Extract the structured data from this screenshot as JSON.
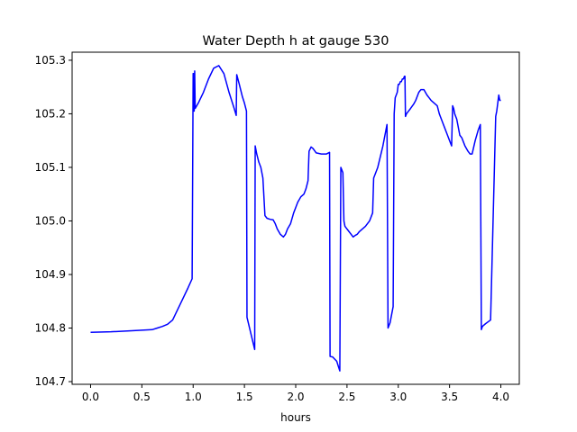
{
  "chart_data": {
    "type": "line",
    "title": "Water Depth h at gauge 530",
    "xlabel": "hours",
    "ylabel": "",
    "xlim": [
      -0.18,
      4.18
    ],
    "ylim": [
      104.695,
      105.315
    ],
    "xticks": [
      0.0,
      0.5,
      1.0,
      1.5,
      2.0,
      2.5,
      3.0,
      3.5,
      4.0
    ],
    "xtick_labels": [
      "0.0",
      "0.5",
      "1.0",
      "1.5",
      "2.0",
      "2.5",
      "3.0",
      "3.5",
      "4.0"
    ],
    "yticks": [
      104.7,
      104.8,
      104.9,
      105.0,
      105.1,
      105.2,
      105.3
    ],
    "ytick_labels": [
      "104.7",
      "104.8",
      "104.9",
      "105.0",
      "105.1",
      "105.2",
      "105.3"
    ],
    "grid": false,
    "series": [
      {
        "color": "#0000ff",
        "x": [
          0.0,
          0.2,
          0.4,
          0.6,
          0.65,
          0.7,
          0.75,
          0.8,
          0.85,
          0.9,
          0.95,
          0.99,
          1.0,
          1.005,
          1.01,
          1.015,
          1.02,
          1.05,
          1.1,
          1.15,
          1.2,
          1.25,
          1.3,
          1.35,
          1.4,
          1.42,
          1.425,
          1.45,
          1.48,
          1.5,
          1.52,
          1.525,
          1.6,
          1.605,
          1.62,
          1.64,
          1.66,
          1.68,
          1.7,
          1.72,
          1.75,
          1.78,
          1.8,
          1.82,
          1.85,
          1.88,
          1.9,
          1.92,
          1.95,
          1.98,
          2.0,
          2.02,
          2.05,
          2.08,
          2.1,
          2.12,
          2.13,
          2.15,
          2.17,
          2.2,
          2.25,
          2.3,
          2.33,
          2.335,
          2.36,
          2.4,
          2.43,
          2.44,
          2.45,
          2.46,
          2.47,
          2.48,
          2.5,
          2.52,
          2.54,
          2.56,
          2.58,
          2.6,
          2.62,
          2.65,
          2.68,
          2.7,
          2.72,
          2.75,
          2.76,
          2.8,
          2.85,
          2.88,
          2.89,
          2.9,
          2.92,
          2.95,
          2.96,
          2.97,
          2.98,
          2.99,
          3.0,
          3.01,
          3.02,
          3.03,
          3.04,
          3.05,
          3.06,
          3.065,
          3.07,
          3.08,
          3.1,
          3.12,
          3.15,
          3.17,
          3.2,
          3.22,
          3.25,
          3.28,
          3.3,
          3.32,
          3.35,
          3.38,
          3.4,
          3.43,
          3.45,
          3.48,
          3.5,
          3.52,
          3.53,
          3.54,
          3.55,
          3.57,
          3.6,
          3.62,
          3.63,
          3.65,
          3.68,
          3.7,
          3.72,
          3.75,
          3.78,
          3.8,
          3.81,
          3.815,
          3.82,
          3.85,
          3.9,
          3.95,
          3.955,
          3.96,
          3.97,
          3.98,
          3.99,
          4.0
        ],
        "y": [
          104.792,
          104.793,
          104.795,
          104.797,
          104.8,
          104.803,
          104.807,
          104.815,
          104.835,
          104.855,
          104.875,
          104.892,
          105.275,
          105.275,
          105.205,
          105.28,
          105.21,
          105.22,
          105.24,
          105.265,
          105.285,
          105.29,
          105.275,
          105.24,
          105.21,
          105.197,
          105.273,
          105.255,
          105.232,
          105.22,
          105.205,
          104.82,
          104.76,
          105.14,
          105.125,
          105.11,
          105.1,
          105.08,
          105.01,
          105.005,
          105.003,
          105.002,
          104.995,
          104.985,
          104.975,
          104.97,
          104.975,
          104.985,
          104.995,
          105.015,
          105.025,
          105.035,
          105.045,
          105.05,
          105.06,
          105.075,
          105.13,
          105.138,
          105.135,
          105.127,
          105.125,
          105.125,
          105.128,
          104.747,
          104.746,
          104.738,
          104.72,
          105.1,
          105.095,
          105.09,
          105.0,
          104.99,
          104.985,
          104.98,
          104.975,
          104.97,
          104.973,
          104.975,
          104.98,
          104.985,
          104.99,
          104.995,
          105.0,
          105.015,
          105.08,
          105.1,
          105.14,
          105.17,
          105.18,
          104.8,
          104.81,
          104.84,
          105.2,
          105.23,
          105.235,
          105.24,
          105.255,
          105.255,
          105.26,
          105.26,
          105.265,
          105.265,
          105.27,
          105.27,
          105.195,
          105.2,
          105.205,
          105.21,
          105.218,
          105.225,
          105.24,
          105.245,
          105.245,
          105.235,
          105.23,
          105.225,
          105.22,
          105.215,
          105.2,
          105.185,
          105.175,
          105.16,
          105.15,
          105.14,
          105.215,
          105.21,
          105.2,
          105.19,
          105.16,
          105.155,
          105.15,
          105.14,
          105.13,
          105.125,
          105.125,
          105.15,
          105.17,
          105.18,
          104.797,
          104.8,
          104.803,
          104.808,
          104.815,
          105.195,
          105.2,
          105.205,
          105.22,
          105.235,
          105.225,
          105.225
        ]
      }
    ]
  }
}
